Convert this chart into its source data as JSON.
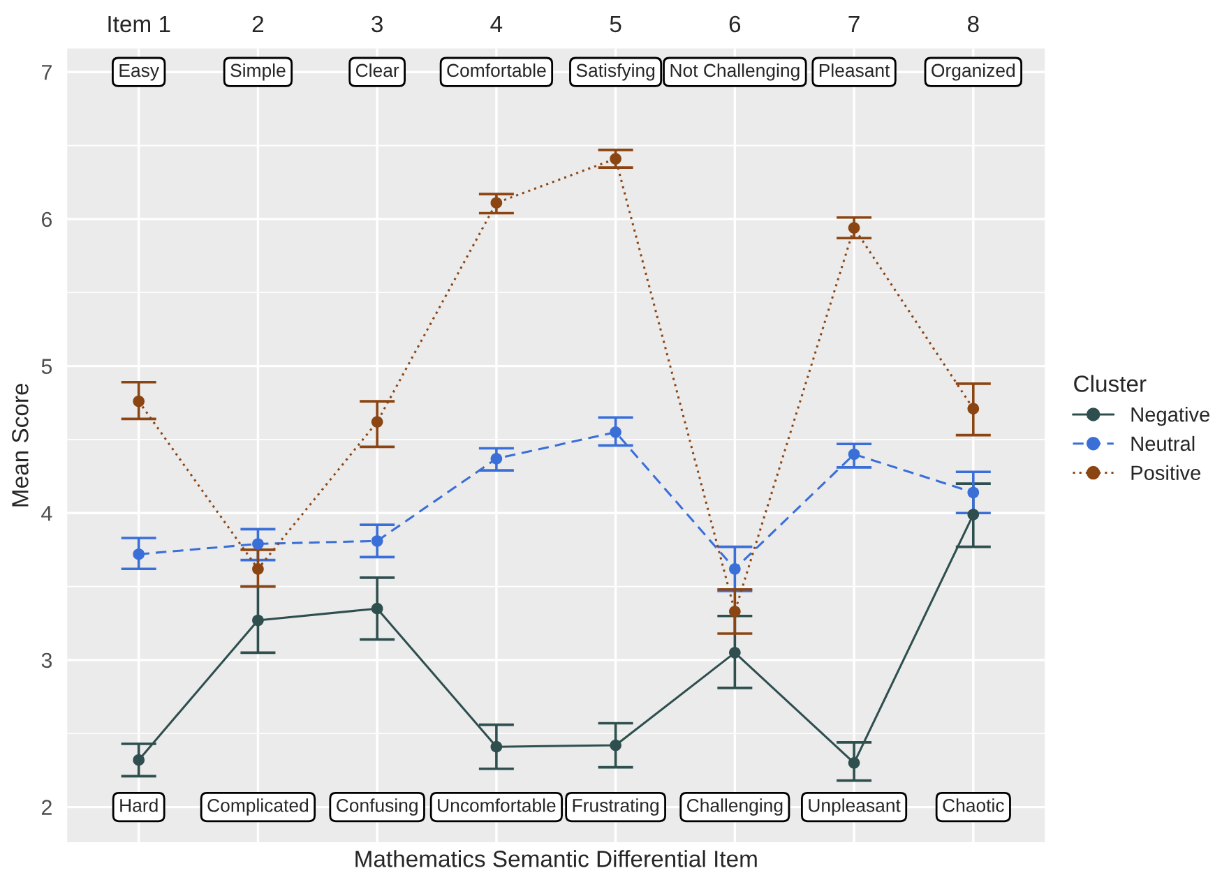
{
  "chart_data": {
    "type": "line",
    "xlabel": "Mathematics Semantic Differential Item",
    "ylabel": "Mean Score",
    "legend_title": "Cluster",
    "categories": [
      "Item 1",
      "2",
      "3",
      "4",
      "5",
      "6",
      "7",
      "8"
    ],
    "series": [
      {
        "name": "Negative",
        "color": "#2f4f4f",
        "line_style": "solid",
        "values": [
          2.32,
          3.27,
          3.35,
          2.41,
          2.42,
          3.05,
          2.3,
          3.99
        ],
        "errors": [
          [
            2.21,
            2.43
          ],
          [
            3.05,
            3.5
          ],
          [
            3.14,
            3.56
          ],
          [
            2.26,
            2.56
          ],
          [
            2.27,
            2.57
          ],
          [
            2.81,
            3.3
          ],
          [
            2.18,
            2.44
          ],
          [
            3.77,
            4.2
          ]
        ]
      },
      {
        "name": "Neutral",
        "color": "#3a6fd8",
        "line_style": "dashed",
        "values": [
          3.72,
          3.79,
          3.81,
          4.37,
          4.55,
          3.62,
          4.4,
          4.14
        ],
        "errors": [
          [
            3.62,
            3.83
          ],
          [
            3.68,
            3.89
          ],
          [
            3.7,
            3.92
          ],
          [
            4.29,
            4.44
          ],
          [
            4.46,
            4.65
          ],
          [
            3.47,
            3.77
          ],
          [
            4.31,
            4.47
          ],
          [
            4.0,
            4.28
          ]
        ]
      },
      {
        "name": "Positive",
        "color": "#8b4513",
        "line_style": "dotted",
        "values": [
          4.76,
          3.62,
          4.62,
          6.11,
          6.41,
          3.33,
          5.94,
          4.71
        ],
        "errors": [
          [
            4.64,
            4.89
          ],
          [
            3.5,
            3.75
          ],
          [
            4.45,
            4.76
          ],
          [
            6.04,
            6.17
          ],
          [
            6.35,
            6.47
          ],
          [
            3.18,
            3.48
          ],
          [
            5.87,
            6.01
          ],
          [
            4.53,
            4.88
          ]
        ]
      }
    ],
    "ylim": [
      1.76,
      7.16
    ],
    "yticks": [
      2,
      3,
      4,
      5,
      6,
      7
    ],
    "grid": true,
    "legend": "right",
    "marker": "circle",
    "annotations": [
      "Easy",
      "Simple",
      "Clear",
      "Comfortable",
      "Satisfying",
      "Not Challenging",
      "Pleasant",
      "Organized",
      "Hard",
      "Complicated",
      "Confusing",
      "Uncomfortable",
      "Frustrating",
      "Challenging",
      "Unpleasant",
      "Chaotic"
    ]
  }
}
